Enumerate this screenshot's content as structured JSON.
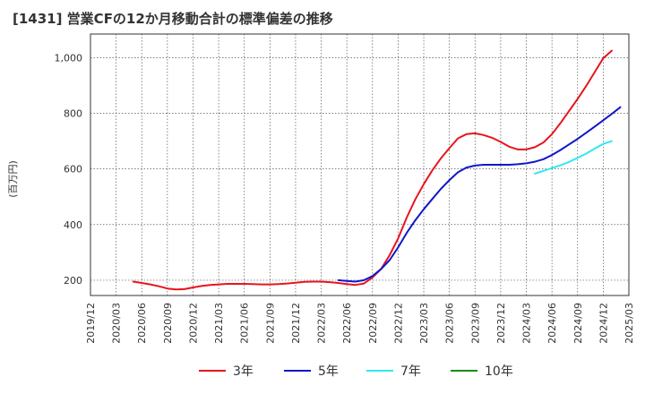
{
  "chart_data": {
    "type": "line",
    "title": "[1431]  営業CFの12か月移動合計の標準偏差の推移",
    "ylabel": "(百万円)",
    "xlabel": "",
    "ylim": [
      145,
      1085
    ],
    "yticks": [
      200,
      400,
      600,
      800,
      1000
    ],
    "ytick_labels": [
      "200",
      "400",
      "600",
      "800",
      "1,000"
    ],
    "xticks": [
      "2019/12",
      "2020/03",
      "2020/06",
      "2020/09",
      "2020/12",
      "2021/03",
      "2021/06",
      "2021/09",
      "2021/12",
      "2022/03",
      "2022/06",
      "2022/09",
      "2022/12",
      "2023/03",
      "2023/06",
      "2023/09",
      "2023/12",
      "2024/03",
      "2024/06",
      "2024/09",
      "2024/12",
      "2025/03"
    ],
    "grid": true,
    "legend_position": "bottom",
    "series": [
      {
        "name": "3年",
        "color": "#e8141e",
        "values": [
          {
            "x": "2020/05",
            "y": 195
          },
          {
            "x": "2020/06",
            "y": 190
          },
          {
            "x": "2020/07",
            "y": 185
          },
          {
            "x": "2020/08",
            "y": 178
          },
          {
            "x": "2020/09",
            "y": 170
          },
          {
            "x": "2020/10",
            "y": 167
          },
          {
            "x": "2020/11",
            "y": 168
          },
          {
            "x": "2020/12",
            "y": 174
          },
          {
            "x": "2021/01",
            "y": 179
          },
          {
            "x": "2021/02",
            "y": 183
          },
          {
            "x": "2021/03",
            "y": 185
          },
          {
            "x": "2021/04",
            "y": 187
          },
          {
            "x": "2021/05",
            "y": 187
          },
          {
            "x": "2021/06",
            "y": 187
          },
          {
            "x": "2021/07",
            "y": 186
          },
          {
            "x": "2021/08",
            "y": 185
          },
          {
            "x": "2021/09",
            "y": 185
          },
          {
            "x": "2021/10",
            "y": 186
          },
          {
            "x": "2021/11",
            "y": 188
          },
          {
            "x": "2021/12",
            "y": 191
          },
          {
            "x": "2022/01",
            "y": 194
          },
          {
            "x": "2022/02",
            "y": 195
          },
          {
            "x": "2022/03",
            "y": 195
          },
          {
            "x": "2022/04",
            "y": 193
          },
          {
            "x": "2022/05",
            "y": 190
          },
          {
            "x": "2022/06",
            "y": 186
          },
          {
            "x": "2022/07",
            "y": 183
          },
          {
            "x": "2022/08",
            "y": 188
          },
          {
            "x": "2022/09",
            "y": 210
          },
          {
            "x": "2022/10",
            "y": 240
          },
          {
            "x": "2022/11",
            "y": 290
          },
          {
            "x": "2022/12",
            "y": 350
          },
          {
            "x": "2023/01",
            "y": 425
          },
          {
            "x": "2023/02",
            "y": 490
          },
          {
            "x": "2023/03",
            "y": 545
          },
          {
            "x": "2023/04",
            "y": 595
          },
          {
            "x": "2023/05",
            "y": 638
          },
          {
            "x": "2023/06",
            "y": 675
          },
          {
            "x": "2023/07",
            "y": 710
          },
          {
            "x": "2023/08",
            "y": 725
          },
          {
            "x": "2023/09",
            "y": 728
          },
          {
            "x": "2023/10",
            "y": 722
          },
          {
            "x": "2023/11",
            "y": 712
          },
          {
            "x": "2023/12",
            "y": 697
          },
          {
            "x": "2024/01",
            "y": 680
          },
          {
            "x": "2024/02",
            "y": 670
          },
          {
            "x": "2024/03",
            "y": 670
          },
          {
            "x": "2024/04",
            "y": 678
          },
          {
            "x": "2024/05",
            "y": 695
          },
          {
            "x": "2024/06",
            "y": 725
          },
          {
            "x": "2024/07",
            "y": 765
          },
          {
            "x": "2024/08",
            "y": 808
          },
          {
            "x": "2024/09",
            "y": 852
          },
          {
            "x": "2024/10",
            "y": 898
          },
          {
            "x": "2024/11",
            "y": 948
          },
          {
            "x": "2024/12",
            "y": 998
          },
          {
            "x": "2025/01",
            "y": 1025
          }
        ]
      },
      {
        "name": "5年",
        "color": "#1018c8",
        "values": [
          {
            "x": "2022/05",
            "y": 200
          },
          {
            "x": "2022/06",
            "y": 197
          },
          {
            "x": "2022/07",
            "y": 195
          },
          {
            "x": "2022/08",
            "y": 200
          },
          {
            "x": "2022/09",
            "y": 215
          },
          {
            "x": "2022/10",
            "y": 240
          },
          {
            "x": "2022/11",
            "y": 272
          },
          {
            "x": "2022/12",
            "y": 318
          },
          {
            "x": "2023/01",
            "y": 370
          },
          {
            "x": "2023/02",
            "y": 415
          },
          {
            "x": "2023/03",
            "y": 455
          },
          {
            "x": "2023/04",
            "y": 492
          },
          {
            "x": "2023/05",
            "y": 528
          },
          {
            "x": "2023/06",
            "y": 560
          },
          {
            "x": "2023/07",
            "y": 588
          },
          {
            "x": "2023/08",
            "y": 605
          },
          {
            "x": "2023/09",
            "y": 612
          },
          {
            "x": "2023/10",
            "y": 615
          },
          {
            "x": "2023/11",
            "y": 615
          },
          {
            "x": "2023/12",
            "y": 615
          },
          {
            "x": "2024/01",
            "y": 615
          },
          {
            "x": "2024/02",
            "y": 617
          },
          {
            "x": "2024/03",
            "y": 620
          },
          {
            "x": "2024/04",
            "y": 626
          },
          {
            "x": "2024/05",
            "y": 635
          },
          {
            "x": "2024/06",
            "y": 650
          },
          {
            "x": "2024/07",
            "y": 668
          },
          {
            "x": "2024/08",
            "y": 688
          },
          {
            "x": "2024/09",
            "y": 708
          },
          {
            "x": "2024/10",
            "y": 730
          },
          {
            "x": "2024/11",
            "y": 752
          },
          {
            "x": "2024/12",
            "y": 775
          },
          {
            "x": "2025/01",
            "y": 798
          },
          {
            "x": "2025/02",
            "y": 822
          }
        ]
      },
      {
        "name": "7年",
        "color": "#30e8f0",
        "values": [
          {
            "x": "2024/04",
            "y": 583
          },
          {
            "x": "2024/05",
            "y": 593
          },
          {
            "x": "2024/06",
            "y": 603
          },
          {
            "x": "2024/07",
            "y": 613
          },
          {
            "x": "2024/08",
            "y": 625
          },
          {
            "x": "2024/09",
            "y": 640
          },
          {
            "x": "2024/10",
            "y": 655
          },
          {
            "x": "2024/11",
            "y": 673
          },
          {
            "x": "2024/12",
            "y": 690
          },
          {
            "x": "2025/01",
            "y": 700
          }
        ]
      },
      {
        "name": "10年",
        "color": "#1a8a1a",
        "values": []
      }
    ]
  }
}
